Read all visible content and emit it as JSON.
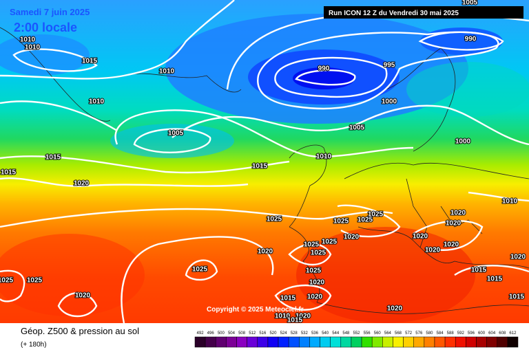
{
  "header": {
    "date": "Samedi 7 juin 2025",
    "time": "2:00 locale",
    "run": "Run ICON 12 Z du Vendredi 30 mai 2025"
  },
  "footer": {
    "title": "Géop. Z500 & pression au sol",
    "step": "(+ 180h)",
    "copyright": "Copyright © 2025 Meteociel.fr"
  },
  "isobar_labels": [
    "1010",
    "1010",
    "1015",
    "1010",
    "1010",
    "1005",
    "990",
    "990",
    "995",
    "1000",
    "1005",
    "1000",
    "1010",
    "1015",
    "1015",
    "1015",
    "1020",
    "1025",
    "1025",
    "1025",
    "1025",
    "1020",
    "1025",
    "1025",
    "1025",
    "1020",
    "1025",
    "1025",
    "1020",
    "1015",
    "1020",
    "1010",
    "1020",
    "1015",
    "1020",
    "1025",
    "1025",
    "1020",
    "1020",
    "1020",
    "1020",
    "1020",
    "1020",
    "1015",
    "1015",
    "1015",
    "1020",
    "1010",
    "1005"
  ],
  "colorbar": [
    {
      "label": 492,
      "color": "#2a0028"
    },
    {
      "label": 496,
      "color": "#44004a"
    },
    {
      "label": 500,
      "color": "#600070"
    },
    {
      "label": 504,
      "color": "#7c0096"
    },
    {
      "label": 508,
      "color": "#8a00c0"
    },
    {
      "label": 512,
      "color": "#6a00d8"
    },
    {
      "label": 516,
      "color": "#3c00e8"
    },
    {
      "label": 520,
      "color": "#1000f4"
    },
    {
      "label": 524,
      "color": "#0020ff"
    },
    {
      "label": 528,
      "color": "#0050ff"
    },
    {
      "label": 532,
      "color": "#0080ff"
    },
    {
      "label": 536,
      "color": "#00aaff"
    },
    {
      "label": 540,
      "color": "#00ccf0"
    },
    {
      "label": 544,
      "color": "#00e0d8"
    },
    {
      "label": 548,
      "color": "#00d8a0"
    },
    {
      "label": 552,
      "color": "#00d060"
    },
    {
      "label": 556,
      "color": "#30e000"
    },
    {
      "label": 560,
      "color": "#80ea00"
    },
    {
      "label": 564,
      "color": "#c8f000"
    },
    {
      "label": 568,
      "color": "#f8f000"
    },
    {
      "label": 572,
      "color": "#ffd000"
    },
    {
      "label": 576,
      "color": "#ffa800"
    },
    {
      "label": 580,
      "color": "#ff8000"
    },
    {
      "label": 584,
      "color": "#ff5800"
    },
    {
      "label": 588,
      "color": "#ff3000"
    },
    {
      "label": 592,
      "color": "#f01000"
    },
    {
      "label": 596,
      "color": "#d00000"
    },
    {
      "label": 600,
      "color": "#a80000"
    },
    {
      "label": 604,
      "color": "#800000"
    },
    {
      "label": 608,
      "color": "#500000"
    },
    {
      "label": 612,
      "color": "#100000"
    }
  ]
}
